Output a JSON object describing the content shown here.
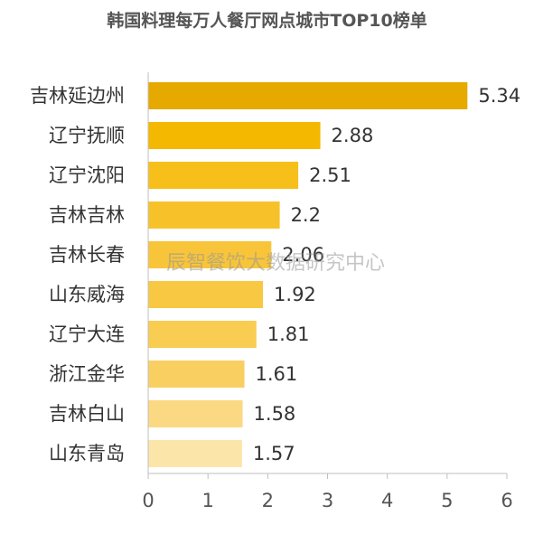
{
  "chart_data": {
    "type": "bar",
    "orientation": "horizontal",
    "title": "韩国料理每万人餐厅网点城市TOP10榜单",
    "categories": [
      "吉林延边州",
      "辽宁抚顺",
      "辽宁沈阳",
      "吉林吉林",
      "吉林长春",
      "山东威海",
      "辽宁大连",
      "浙江金华",
      "吉林白山",
      "山东青岛"
    ],
    "values": [
      5.34,
      2.88,
      2.51,
      2.2,
      2.06,
      1.92,
      1.81,
      1.61,
      1.58,
      1.57
    ],
    "value_labels": [
      "5.34",
      "2.88",
      "2.51",
      "2.2",
      "2.06",
      "1.92",
      "1.81",
      "1.61",
      "1.58",
      "1.57"
    ],
    "bar_colors": [
      "#e6a900",
      "#f5b800",
      "#f7bf1a",
      "#f7c229",
      "#f8c53a",
      "#f8c843",
      "#f9cc52",
      "#facf62",
      "#fbd983",
      "#fce5a9"
    ],
    "xlim": [
      0,
      6
    ],
    "xticks": [
      "0",
      "1",
      "2",
      "3",
      "4",
      "5",
      "6"
    ],
    "grid": false,
    "legend": "none"
  },
  "watermark": "辰智餐饮大数据研究中心"
}
